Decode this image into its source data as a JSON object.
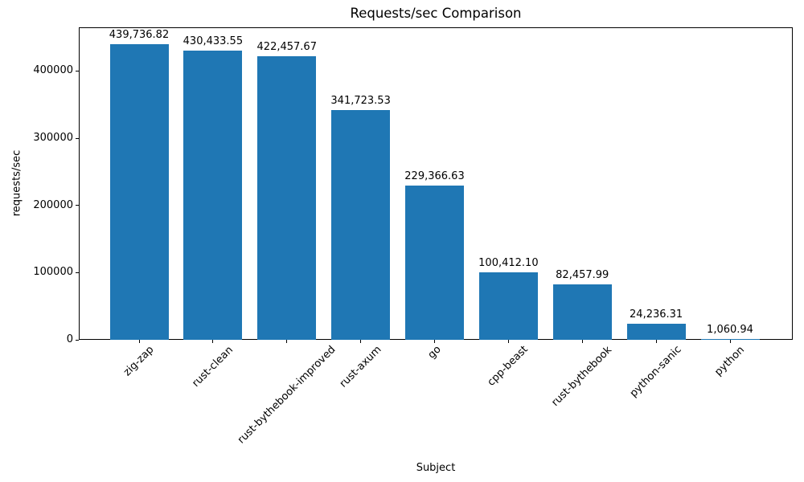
{
  "chart_data": {
    "type": "bar",
    "title": "Requests/sec Comparison",
    "xlabel": "Subject",
    "ylabel": "requests/sec",
    "categories": [
      "zig-zap",
      "rust-clean",
      "rust-bythebook-improved",
      "rust-axum",
      "go",
      "cpp-beast",
      "rust-bythebook",
      "python-sanic",
      "python"
    ],
    "values": [
      439736.82,
      430433.55,
      422457.67,
      341723.53,
      229366.63,
      100412.1,
      82457.99,
      24236.31,
      1060.94
    ],
    "bar_labels": [
      "439,736.82",
      "430,433.55",
      "422,457.67",
      "341,723.53",
      "229,366.63",
      "100,412.10",
      "82,457.99",
      "24,236.31",
      "1,060.94"
    ],
    "yticks": [
      0,
      100000,
      200000,
      300000,
      400000
    ],
    "ytick_labels": [
      "0",
      "100000",
      "200000",
      "300000",
      "400000"
    ],
    "ylim": [
      0,
      465000
    ],
    "bar_color": "#1f77b4",
    "grid": false,
    "legend": null
  }
}
